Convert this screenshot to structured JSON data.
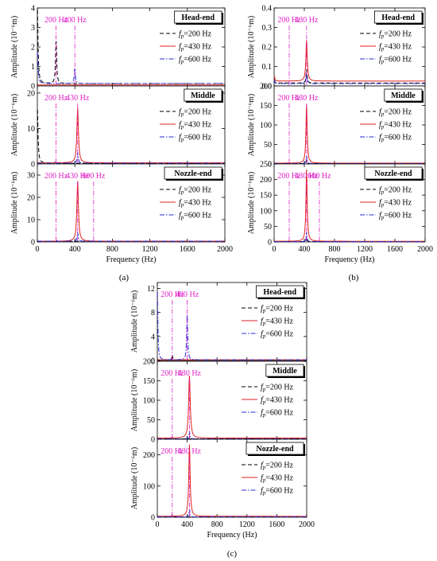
{
  "chart_data": [
    {
      "type": "line",
      "panel_caption": "(a)",
      "xlabel": "Frequency (Hz)",
      "xlim": [
        0,
        2000
      ],
      "x_ticks": [
        0,
        400,
        800,
        1200,
        1600,
        2000
      ],
      "legend_placement": "right",
      "series_styles": [
        {
          "color": "#000000",
          "dash": "dashed"
        },
        {
          "color": "#e02020",
          "dash": "solid"
        },
        {
          "color": "#2a2ad6",
          "dash": "dash-dot"
        }
      ],
      "subplots": [
        {
          "region": "Head-end",
          "ylabel": "Amplitude (10⁻⁶m)",
          "ylim": [
            0,
            4
          ],
          "y_ticks": [
            0,
            1,
            2,
            3,
            4
          ],
          "legend": [
            [
              "f",
              "p",
              "=200 Hz"
            ],
            [
              "f",
              "p",
              "=430 Hz"
            ],
            [
              "f",
              "p",
              "=600 Hz"
            ]
          ],
          "annotations": [
            {
              "text": "200 Hz",
              "x": 200
            },
            {
              "text": "400 Hz",
              "x": 400
            }
          ],
          "peaks": [
            {
              "series": 0,
              "x": 200,
              "y": 2.3,
              "width": 14
            },
            {
              "series": 2,
              "x": 400,
              "y": 0.8,
              "width": 14
            }
          ],
          "baseline": [
            0.12,
            0.05,
            0.12
          ],
          "near_zero": [
            4.0,
            0,
            1.7
          ]
        },
        {
          "region": "Middle",
          "ylabel": "Amplitude (10⁻⁶m)",
          "ylim": [
            0,
            22
          ],
          "y_ticks": [
            0,
            10,
            20
          ],
          "legend": [
            [
              "f",
              "p",
              "=200 Hz"
            ],
            [
              "f",
              "p",
              "=430 Hz"
            ],
            [
              "f",
              "p",
              "=600 Hz"
            ]
          ],
          "annotations": [
            {
              "text": "200 Hz",
              "x": 200
            },
            {
              "text": "430 Hz",
              "x": 430
            }
          ],
          "peaks": [
            {
              "series": 1,
              "x": 430,
              "y": 15.5,
              "width": 20
            },
            {
              "series": 2,
              "x": 430,
              "y": 3,
              "width": 14
            },
            {
              "series": 0,
              "x": 200,
              "y": 0.6,
              "width": 10
            }
          ],
          "baseline": [
            0.2,
            0.3,
            0.2
          ],
          "near_zero": [
            16,
            0,
            0
          ]
        },
        {
          "region": "Nozzle-end",
          "ylabel": "Amplitude (10⁻⁶m)",
          "ylim": [
            0,
            35
          ],
          "y_ticks": [
            0,
            10,
            20,
            30
          ],
          "legend": [
            [
              "f",
              "p",
              "=200 Hz"
            ],
            [
              "f",
              "p",
              "=430 Hz"
            ],
            [
              "f",
              "p",
              "=600 Hz"
            ]
          ],
          "annotations": [
            {
              "text": "200 Hz",
              "x": 200
            },
            {
              "text": "430 Hz",
              "x": 430
            },
            {
              "text": "600 Hz",
              "x": 600
            }
          ],
          "peaks": [
            {
              "series": 1,
              "x": 430,
              "y": 27,
              "width": 20
            },
            {
              "series": 2,
              "x": 430,
              "y": 4,
              "width": 14
            },
            {
              "series": 0,
              "x": 200,
              "y": 0.6,
              "width": 10
            }
          ],
          "baseline": [
            0.3,
            0.3,
            0.3
          ],
          "near_zero": [
            0,
            0,
            0
          ]
        }
      ]
    },
    {
      "type": "line",
      "panel_caption": "(b)",
      "xlabel": "Frequency (Hz)",
      "xlim": [
        0,
        2000
      ],
      "x_ticks": [
        0,
        400,
        800,
        1200,
        1600,
        2000
      ],
      "legend_placement": "right",
      "series_styles": [
        {
          "color": "#000000",
          "dash": "dashed"
        },
        {
          "color": "#e02020",
          "dash": "solid"
        },
        {
          "color": "#2a2ad6",
          "dash": "dash-dot"
        }
      ],
      "subplots": [
        {
          "region": "Head-end",
          "ylabel": "Amplitude (10⁻⁶m)",
          "ylim": [
            0,
            0.4
          ],
          "y_ticks": [
            0.0,
            0.1,
            0.2,
            0.3,
            0.4
          ],
          "y_tick_decimals": 1,
          "legend": [
            [
              "f",
              "p",
              "=200 Hz"
            ],
            [
              "f",
              "p",
              "=430 Hz"
            ],
            [
              "f",
              "p",
              "=600 Hz"
            ]
          ],
          "annotations": [
            {
              "text": "200 Hz",
              "x": 200
            },
            {
              "text": "430 Hz",
              "x": 430
            }
          ],
          "peaks": [
            {
              "series": 1,
              "x": 430,
              "y": 0.21,
              "width": 22
            },
            {
              "series": 0,
              "x": 430,
              "y": 0.07,
              "width": 16
            },
            {
              "series": 2,
              "x": 430,
              "y": 0.05,
              "width": 16
            }
          ],
          "baseline": [
            0.015,
            0.025,
            0.012
          ],
          "near_zero": [
            0.02,
            0.03,
            0.02
          ]
        },
        {
          "region": "Middle",
          "ylabel": "Amplitude (10⁻⁶m)",
          "ylim": [
            0,
            200
          ],
          "y_ticks": [
            0,
            50,
            100,
            150,
            200
          ],
          "legend": [
            [
              "f",
              "p",
              "=200 Hz"
            ],
            [
              "f",
              "p",
              "=430 Hz"
            ],
            [
              "f",
              "p",
              "=600 Hz"
            ]
          ],
          "annotations": [
            {
              "text": "200 Hz",
              "x": 200
            },
            {
              "text": "430 Hz",
              "x": 430
            }
          ],
          "peaks": [
            {
              "series": 1,
              "x": 430,
              "y": 150,
              "width": 20
            },
            {
              "series": 2,
              "x": 430,
              "y": 20,
              "width": 14
            },
            {
              "series": 0,
              "x": 430,
              "y": 10,
              "width": 12
            }
          ],
          "baseline": [
            1,
            2,
            1
          ],
          "near_zero": [
            0,
            0,
            0
          ]
        },
        {
          "region": "Nozzle-end",
          "ylabel": "Amplitude (10⁻⁶m)",
          "ylim": [
            0,
            250
          ],
          "y_ticks": [
            0,
            50,
            100,
            150,
            200,
            250
          ],
          "legend": [
            [
              "f",
              "p",
              "=200 Hz"
            ],
            [
              "f",
              "p",
              "=430 Hz"
            ],
            [
              "f",
              "p",
              "=600 Hz"
            ]
          ],
          "annotations": [
            {
              "text": "200 Hz",
              "x": 200
            },
            {
              "text": "430 Hz",
              "x": 430
            },
            {
              "text": "600 Hz",
              "x": 600
            }
          ],
          "peaks": [
            {
              "series": 1,
              "x": 430,
              "y": 230,
              "width": 20
            },
            {
              "series": 2,
              "x": 430,
              "y": 30,
              "width": 14
            },
            {
              "series": 0,
              "x": 430,
              "y": 15,
              "width": 12
            }
          ],
          "baseline": [
            1,
            2,
            1
          ],
          "near_zero": [
            0,
            0,
            0
          ]
        }
      ]
    },
    {
      "type": "line",
      "panel_caption": "(c)",
      "xlabel": "Frequency (Hz)",
      "xlim": [
        0,
        2000
      ],
      "x_ticks": [
        0,
        400,
        800,
        1200,
        1600,
        2000
      ],
      "legend_placement": "right",
      "series_styles": [
        {
          "color": "#000000",
          "dash": "dashed"
        },
        {
          "color": "#e02020",
          "dash": "solid"
        },
        {
          "color": "#2a2ad6",
          "dash": "dash-dot"
        }
      ],
      "subplots": [
        {
          "region": "Head-end",
          "ylabel": "Amplitude (10⁻⁶m)",
          "ylim": [
            0,
            13
          ],
          "y_ticks": [
            0,
            4,
            8,
            12
          ],
          "legend": [
            [
              "f",
              "p",
              "=200 Hz"
            ],
            [
              "f",
              "p",
              "=430 Hz"
            ],
            [
              "f",
              "p",
              "=600 Hz"
            ]
          ],
          "annotations": [
            {
              "text": "200 Hz",
              "x": 200
            },
            {
              "text": "400 Hz",
              "x": 400
            }
          ],
          "peaks": [
            {
              "series": 2,
              "x": 400,
              "y": 8,
              "width": 16
            },
            {
              "series": 0,
              "x": 200,
              "y": 1,
              "width": 10
            }
          ],
          "baseline": [
            0.1,
            0.1,
            0.1
          ],
          "near_zero": [
            0,
            0,
            12
          ]
        },
        {
          "region": "Middle",
          "ylabel": "Amplitude (10⁻⁶m)",
          "ylim": [
            0,
            200
          ],
          "y_ticks": [
            0,
            50,
            100,
            150,
            200
          ],
          "legend": [
            [
              "f",
              "p",
              "=200 Hz"
            ],
            [
              "f",
              "p",
              "=430 Hz"
            ],
            [
              "f",
              "p",
              "=600 Hz"
            ]
          ],
          "annotations": [
            {
              "text": "200 Hz",
              "x": 200
            },
            {
              "text": "430 Hz",
              "x": 430
            }
          ],
          "peaks": [
            {
              "series": 1,
              "x": 430,
              "y": 160,
              "width": 26
            },
            {
              "series": 2,
              "x": 430,
              "y": 20,
              "width": 14
            },
            {
              "series": 0,
              "x": 200,
              "y": 5,
              "width": 10
            }
          ],
          "baseline": [
            1,
            3,
            1
          ],
          "near_zero": [
            0,
            0,
            0
          ]
        },
        {
          "region": "Nozzle-end",
          "ylabel": "Amplitude (10⁻⁶m)",
          "ylim": [
            0,
            250
          ],
          "y_ticks": [
            0,
            100,
            200
          ],
          "legend": [
            [
              "f",
              "p",
              "=200 Hz"
            ],
            [
              "f",
              "p",
              "=430 Hz"
            ],
            [
              "f",
              "p",
              "=600 Hz"
            ]
          ],
          "annotations": [
            {
              "text": "200 Hz",
              "x": 200
            },
            {
              "text": "430 Hz",
              "x": 430
            }
          ],
          "peaks": [
            {
              "series": 1,
              "x": 430,
              "y": 230,
              "width": 22
            },
            {
              "series": 2,
              "x": 430,
              "y": 25,
              "width": 14
            },
            {
              "series": 0,
              "x": 200,
              "y": 8,
              "width": 10
            }
          ],
          "baseline": [
            1,
            3,
            1
          ],
          "near_zero": [
            0,
            0,
            0
          ]
        }
      ]
    }
  ]
}
